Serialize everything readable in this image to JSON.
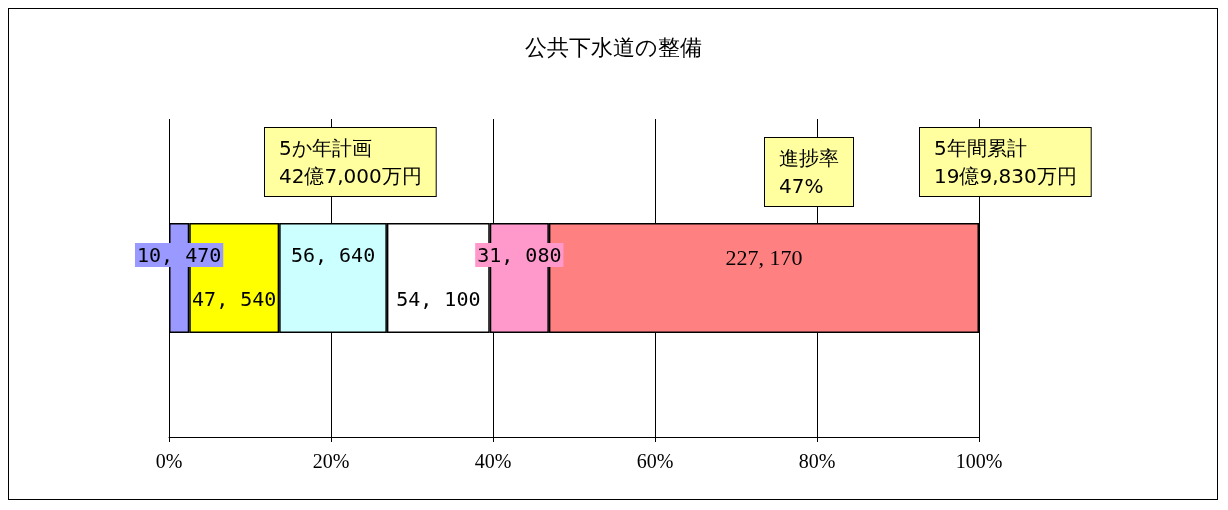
{
  "chart_data": {
    "type": "bar",
    "title": "公共下水道の整備",
    "orientation": "horizontal",
    "stacked": true,
    "categories": [
      null
    ],
    "series": [
      {
        "color": "#9999ff",
        "values": [
          2.5
        ]
      },
      {
        "color": "#ffff00",
        "values": [
          11.1
        ]
      },
      {
        "color": "#ccffff",
        "values": [
          13.3
        ]
      },
      {
        "color": "#ffffff",
        "values": [
          12.7
        ]
      },
      {
        "color": "#ff99cc",
        "values": [
          7.3
        ]
      },
      {
        "color": "#ff8080",
        "values": [
          53.1
        ]
      }
    ],
    "xlim": [
      0,
      100
    ],
    "xticks": [
      {
        "value": 0,
        "label": "0%"
      },
      {
        "value": 20,
        "label": "20%"
      },
      {
        "value": 40,
        "label": "40%"
      },
      {
        "value": 60,
        "label": "60%"
      },
      {
        "value": 80,
        "label": "80%"
      },
      {
        "value": 100,
        "label": "100%"
      }
    ],
    "grid": "x",
    "annotations": [
      "5か年計画\n42億7,000万円",
      "進捗率\n47%",
      "5年間累計\n19億9,830万円",
      "10, 470",
      "47, 540",
      "56, 640",
      "54, 100",
      "31, 080",
      "227, 170"
    ]
  }
}
